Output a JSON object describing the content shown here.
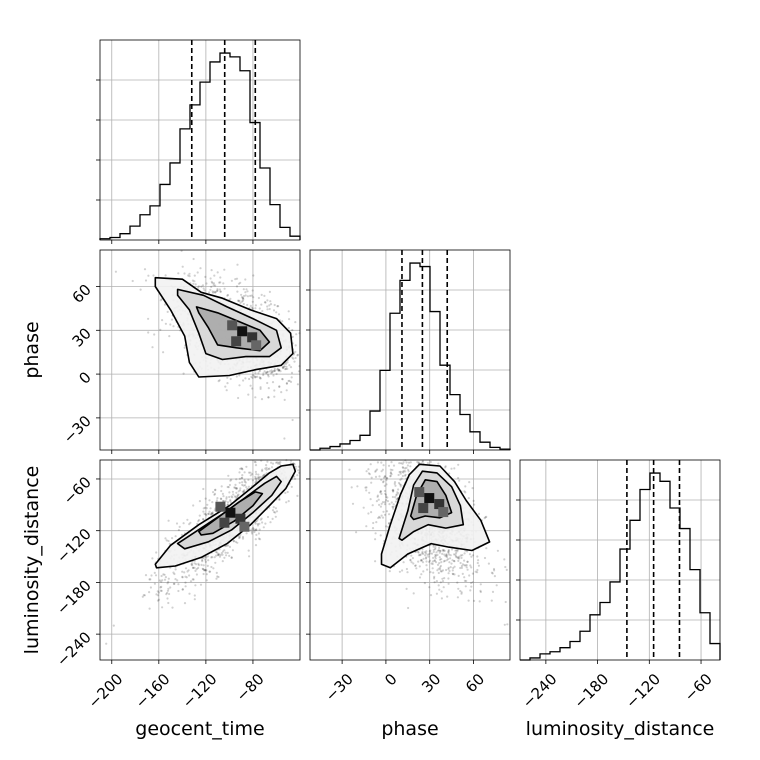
{
  "chart_data": {
    "type": "corner",
    "parameters": [
      "geocent_time",
      "phase",
      "luminosity_distance"
    ],
    "axis_labels": {
      "geocent_time": "geocent_time",
      "phase": "phase",
      "luminosity_distance": "luminosity_distance"
    },
    "ranges": {
      "geocent_time": [
        -210,
        -40
      ],
      "phase": [
        -52,
        85
      ],
      "luminosity_distance": [
        -270,
        -38
      ]
    },
    "ticks": {
      "geocent_time": [
        -200,
        -160,
        -120,
        -80
      ],
      "phase": [
        -30,
        0,
        30,
        60
      ],
      "luminosity_distance": [
        -240,
        -180,
        -120,
        -60
      ]
    },
    "tick_labels": {
      "geocent_time": [
        "−200",
        "−160",
        "−120",
        "−80"
      ],
      "phase": [
        "−30",
        "0",
        "30",
        "60"
      ],
      "luminosity_distance": [
        "−240",
        "−180",
        "−120",
        "−60"
      ]
    },
    "grid": true,
    "histograms": {
      "geocent_time": {
        "edges": [
          -210,
          -201.5,
          -193,
          -184.5,
          -176,
          -167.5,
          -159,
          -150.5,
          -142,
          -133.5,
          -125,
          -116.5,
          -108,
          -99.5,
          -91,
          -82.5,
          -74,
          -65.5,
          -57,
          -48.5,
          -40
        ],
        "counts": [
          1,
          2,
          5,
          11,
          20,
          27,
          44,
          61,
          88,
          107,
          125,
          141,
          148,
          145,
          134,
          93,
          57,
          28,
          10,
          3
        ],
        "quantiles": [
          -132,
          -104,
          -78
        ]
      },
      "phase": {
        "edges": [
          -52,
          -45.15,
          -38.3,
          -31.45,
          -24.6,
          -17.75,
          -10.9,
          -4.05,
          2.8,
          9.65,
          16.5,
          23.35,
          30.2,
          37.05,
          43.9,
          50.75,
          57.6,
          64.45,
          71.3,
          78.15,
          85
        ],
        "counts": [
          0,
          2,
          4,
          7,
          11,
          17,
          45,
          92,
          158,
          196,
          216,
          212,
          160,
          98,
          64,
          41,
          21,
          9,
          3,
          1
        ],
        "quantiles": [
          11,
          25,
          42
        ]
      },
      "luminosity_distance": {
        "edges": [
          -270,
          -258.4,
          -246.8,
          -235.2,
          -223.6,
          -212,
          -200.4,
          -188.8,
          -177.2,
          -165.6,
          -154,
          -142.4,
          -130.8,
          -119.2,
          -107.6,
          -96,
          -84.4,
          -72.8,
          -61.2,
          -49.6,
          -38
        ],
        "counts": [
          0,
          1,
          3,
          4,
          6,
          9,
          14,
          22,
          28,
          38,
          54,
          68,
          83,
          91,
          87,
          74,
          64,
          44,
          23,
          8
        ],
        "quantiles": [
          -146,
          -115,
          -85
        ]
      }
    },
    "contours": {
      "phase_vs_geocent_time": {
        "levels": [
          [
            [
              -163,
              66
            ],
            [
              -140,
              65
            ],
            [
              -124,
              56
            ],
            [
              -106,
              52
            ],
            [
              -82,
              44
            ],
            [
              -60,
              38
            ],
            [
              -48,
              28
            ],
            [
              -46,
              14
            ],
            [
              -56,
              6
            ],
            [
              -78,
              3
            ],
            [
              -100,
              -1
            ],
            [
              -126,
              -2
            ],
            [
              -134,
              8
            ],
            [
              -138,
              26
            ],
            [
              -150,
              44
            ],
            [
              -163,
              60
            ]
          ],
          [
            [
              -144,
              58
            ],
            [
              -122,
              54
            ],
            [
              -102,
              46
            ],
            [
              -80,
              38
            ],
            [
              -60,
              30
            ],
            [
              -56,
              18
            ],
            [
              -66,
              12
            ],
            [
              -86,
              12
            ],
            [
              -106,
              10
            ],
            [
              -120,
              14
            ],
            [
              -126,
              28
            ],
            [
              -134,
              44
            ],
            [
              -144,
              54
            ]
          ],
          [
            [
              -128,
              46
            ],
            [
              -110,
              42
            ],
            [
              -92,
              36
            ],
            [
              -74,
              30
            ],
            [
              -66,
              22
            ],
            [
              -74,
              16
            ],
            [
              -94,
              18
            ],
            [
              -110,
              20
            ],
            [
              -118,
              32
            ],
            [
              -126,
              42
            ]
          ]
        ],
        "peak": [
          -90,
          30
        ]
      },
      "luminosity_distance_vs_geocent_time": {
        "levels": [
          [
            [
              -163,
              -159
            ],
            [
              -150,
              -137
            ],
            [
              -126,
              -113
            ],
            [
              -100,
              -91
            ],
            [
              -80,
              -69
            ],
            [
              -66,
              -53
            ],
            [
              -56,
              -45
            ],
            [
              -46,
              -43
            ],
            [
              -44,
              -51
            ],
            [
              -52,
              -71
            ],
            [
              -66,
              -91
            ],
            [
              -82,
              -113
            ],
            [
              -102,
              -135
            ],
            [
              -124,
              -151
            ],
            [
              -146,
              -161
            ],
            [
              -162,
              -163
            ]
          ],
          [
            [
              -144,
              -135
            ],
            [
              -124,
              -117
            ],
            [
              -104,
              -99
            ],
            [
              -86,
              -81
            ],
            [
              -70,
              -65
            ],
            [
              -60,
              -57
            ],
            [
              -56,
              -63
            ],
            [
              -64,
              -79
            ],
            [
              -80,
              -99
            ],
            [
              -98,
              -119
            ],
            [
              -118,
              -133
            ],
            [
              -138,
              -141
            ]
          ],
          [
            [
              -126,
              -121
            ],
            [
              -108,
              -103
            ],
            [
              -92,
              -87
            ],
            [
              -78,
              -75
            ],
            [
              -72,
              -77
            ],
            [
              -80,
              -91
            ],
            [
              -96,
              -109
            ],
            [
              -114,
              -123
            ],
            [
              -124,
              -125
            ]
          ]
        ],
        "peak": [
          -100,
          -98
        ]
      },
      "luminosity_distance_vs_phase": {
        "levels": [
          [
            [
              -3,
              -147
            ],
            [
              3,
              -113
            ],
            [
              10,
              -78
            ],
            [
              16,
              -55
            ],
            [
              23,
              -43
            ],
            [
              37,
              -45
            ],
            [
              47,
              -63
            ],
            [
              55,
              -85
            ],
            [
              65,
              -108
            ],
            [
              71,
              -133
            ],
            [
              59,
              -143
            ],
            [
              43,
              -139
            ],
            [
              31,
              -135
            ],
            [
              15,
              -147
            ],
            [
              3,
              -163
            ],
            [
              -3,
              -159
            ]
          ],
          [
            [
              9,
              -129
            ],
            [
              15,
              -97
            ],
            [
              19,
              -67
            ],
            [
              25,
              -51
            ],
            [
              35,
              -53
            ],
            [
              45,
              -69
            ],
            [
              51,
              -91
            ],
            [
              53,
              -113
            ],
            [
              41,
              -117
            ],
            [
              29,
              -113
            ],
            [
              19,
              -121
            ],
            [
              11,
              -131
            ]
          ],
          [
            [
              17,
              -103
            ],
            [
              21,
              -79
            ],
            [
              27,
              -61
            ],
            [
              35,
              -63
            ],
            [
              41,
              -79
            ],
            [
              45,
              -99
            ],
            [
              37,
              -105
            ],
            [
              27,
              -103
            ],
            [
              19,
              -107
            ]
          ]
        ],
        "peak": [
          29,
          -81
        ]
      }
    }
  }
}
